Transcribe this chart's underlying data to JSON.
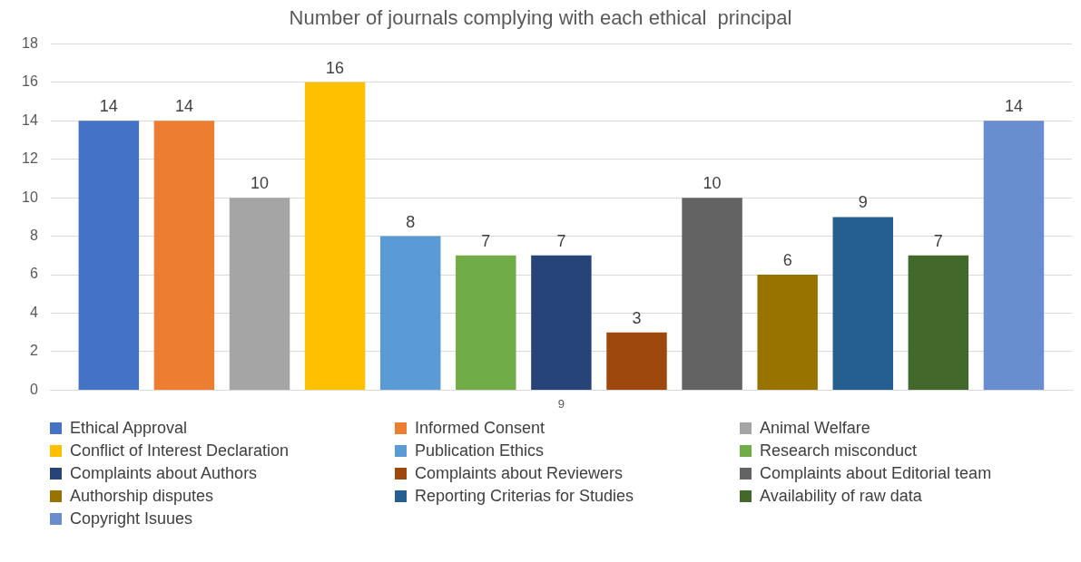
{
  "chart_data": {
    "type": "bar",
    "title": "Number of journals complying with each ethical  principal",
    "categories": [
      "9"
    ],
    "series": [
      {
        "name": "Ethical Approval",
        "color": "#4472c4",
        "values": [
          14
        ]
      },
      {
        "name": "Informed Consent",
        "color": "#ed7d31",
        "values": [
          14
        ]
      },
      {
        "name": "Animal Welfare",
        "color": "#a5a5a5",
        "values": [
          10
        ]
      },
      {
        "name": "Conflict of Interest Declaration",
        "color": "#ffc000",
        "values": [
          16
        ]
      },
      {
        "name": "Publication Ethics",
        "color": "#5b9bd5",
        "values": [
          8
        ]
      },
      {
        "name": "Research misconduct",
        "color": "#70ad47",
        "values": [
          7
        ]
      },
      {
        "name": "Complaints about Authors",
        "color": "#264478",
        "values": [
          7
        ]
      },
      {
        "name": "Complaints about Reviewers",
        "color": "#9e480e",
        "values": [
          3
        ]
      },
      {
        "name": "Complaints about Editorial team",
        "color": "#636363",
        "values": [
          10
        ]
      },
      {
        "name": "Authorship disputes",
        "color": "#997300",
        "values": [
          6
        ]
      },
      {
        "name": "Reporting Criterias for Studies",
        "color": "#255e91",
        "values": [
          9
        ]
      },
      {
        "name": "Availability of raw data",
        "color": "#43682b",
        "values": [
          7
        ]
      },
      {
        "name": "Copyright Isuues",
        "color": "#698ed0",
        "values": [
          14
        ]
      }
    ],
    "ylim": [
      0,
      18
    ],
    "yticks": [
      0,
      2,
      4,
      6,
      8,
      10,
      12,
      14,
      16,
      18
    ],
    "grid": "y",
    "legend": "bottom",
    "data_labels": true
  }
}
